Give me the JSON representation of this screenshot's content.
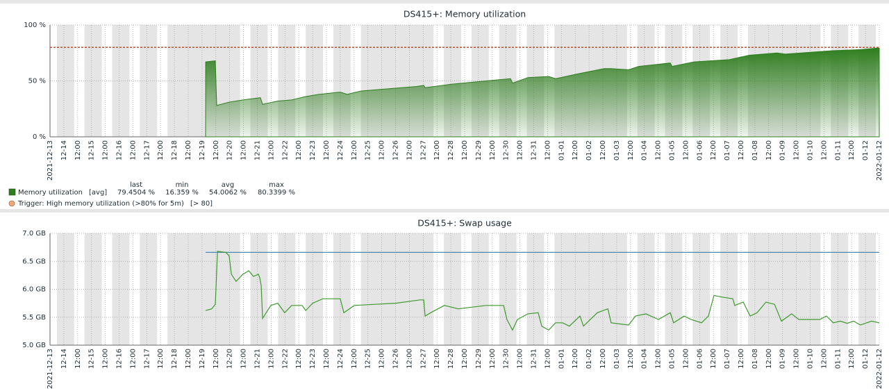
{
  "chart_data": [
    {
      "type": "area",
      "title": "DS415+: Memory utilization",
      "xlim": [
        0,
        30
      ],
      "xticks": [
        {
          "value": 0,
          "label": "2021-12-13"
        },
        {
          "value": 0.5,
          "label": "12-14"
        },
        {
          "value": 1,
          "label": "12:00"
        },
        {
          "value": 1.5,
          "label": "12-15"
        },
        {
          "value": 2,
          "label": "12:00"
        },
        {
          "value": 2.5,
          "label": "12-16"
        },
        {
          "value": 3,
          "label": "12:00"
        },
        {
          "value": 3.5,
          "label": "12-17"
        },
        {
          "value": 4,
          "label": "12:00"
        },
        {
          "value": 4.5,
          "label": "12-18"
        },
        {
          "value": 5,
          "label": "12:00"
        },
        {
          "value": 5.5,
          "label": "12-19"
        },
        {
          "value": 6,
          "label": "12:00"
        },
        {
          "value": 6.5,
          "label": "12-20"
        },
        {
          "value": 7,
          "label": "12:00"
        },
        {
          "value": 7.5,
          "label": "12-21"
        },
        {
          "value": 8,
          "label": "12:00"
        },
        {
          "value": 8.5,
          "label": "12-22"
        },
        {
          "value": 9,
          "label": "12:00"
        },
        {
          "value": 9.5,
          "label": "12-23"
        },
        {
          "value": 10,
          "label": "12:00"
        },
        {
          "value": 10.5,
          "label": "12-24"
        },
        {
          "value": 11,
          "label": "12:00"
        },
        {
          "value": 11.5,
          "label": "12-25"
        },
        {
          "value": 12,
          "label": "12:00"
        },
        {
          "value": 12.5,
          "label": "12-26"
        },
        {
          "value": 13,
          "label": "12:00"
        },
        {
          "value": 13.5,
          "label": "12-27"
        },
        {
          "value": 14,
          "label": "12:00"
        },
        {
          "value": 14.5,
          "label": "12-28"
        },
        {
          "value": 15,
          "label": "12:00"
        },
        {
          "value": 15.5,
          "label": "12-29"
        },
        {
          "value": 16,
          "label": "12:00"
        },
        {
          "value": 16.5,
          "label": "12-30"
        },
        {
          "value": 17,
          "label": "12:00"
        },
        {
          "value": 17.5,
          "label": "12-31"
        },
        {
          "value": 18,
          "label": "12:00"
        },
        {
          "value": 18.5,
          "label": "01-01"
        },
        {
          "value": 19,
          "label": "12:00"
        },
        {
          "value": 19.5,
          "label": "01-02"
        },
        {
          "value": 20,
          "label": "12:00"
        },
        {
          "value": 20.5,
          "label": "01-03"
        },
        {
          "value": 21,
          "label": "12:00"
        },
        {
          "value": 21.5,
          "label": "01-04"
        },
        {
          "value": 22,
          "label": "12:00"
        },
        {
          "value": 22.5,
          "label": "01-05"
        },
        {
          "value": 23,
          "label": "12:00"
        },
        {
          "value": 23.5,
          "label": "01-06"
        },
        {
          "value": 24,
          "label": "12:00"
        },
        {
          "value": 24.5,
          "label": "01-07"
        },
        {
          "value": 25,
          "label": "12:00"
        },
        {
          "value": 25.5,
          "label": "01-08"
        },
        {
          "value": 26,
          "label": "12:00"
        },
        {
          "value": 26.5,
          "label": "01-09"
        },
        {
          "value": 27,
          "label": "12:00"
        },
        {
          "value": 27.5,
          "label": "01-10"
        },
        {
          "value": 28,
          "label": "12:00"
        },
        {
          "value": 28.5,
          "label": "01-11"
        },
        {
          "value": 29,
          "label": "12:00"
        },
        {
          "value": 29.5,
          "label": "01-12"
        },
        {
          "value": 30,
          "label": "2022-01-12"
        }
      ],
      "ylim": [
        0,
        100
      ],
      "yticks": [
        {
          "value": 0,
          "label": "0 %"
        },
        {
          "value": 50,
          "label": "50 %"
        },
        {
          "value": 100,
          "label": "100 %"
        }
      ],
      "grid": true,
      "series": [
        {
          "name": "Memory utilization",
          "function": "[avg]",
          "color": "#2f7d1f",
          "x": [
            5.63,
            5.98,
            6.03,
            6.48,
            6.98,
            7.61,
            7.69,
            8.24,
            8.74,
            9.25,
            9.75,
            10.5,
            10.75,
            11.26,
            12.26,
            13.27,
            13.52,
            13.57,
            14.52,
            15.78,
            16.66,
            16.73,
            17.29,
            18.04,
            18.3,
            19.05,
            20.05,
            20.3,
            20.93,
            21.3,
            22.44,
            22.5,
            23.3,
            24.57,
            25.3,
            26.3,
            26.6,
            28.3,
            29.35,
            30
          ],
          "values": [
            67,
            68,
            28,
            31,
            33,
            35,
            29,
            32,
            33,
            36,
            38,
            40,
            38,
            41,
            43,
            45,
            46,
            44,
            47,
            50,
            52,
            48,
            53,
            54,
            52,
            56,
            61,
            61,
            60,
            63,
            66,
            63,
            67,
            69,
            73,
            75,
            74,
            77,
            78,
            79.5
          ]
        }
      ],
      "legend_stats": {
        "names": [
          "last",
          "min",
          "avg",
          "max"
        ],
        "values": [
          79.4504,
          16.359,
          54.0062,
          80.3399
        ],
        "value_labels": [
          "79.4504 %",
          "16.359 %",
          "54.0062 %",
          "80.3399 %"
        ]
      },
      "trigger": {
        "name": "Trigger: High memory utilization (>80% for 5m)",
        "value": 80,
        "label": "[> 80]",
        "color": "#b5451b"
      }
    },
    {
      "type": "line",
      "title": "DS415+: Swap usage",
      "xlim": [
        0,
        30
      ],
      "xticks": [
        {
          "value": 0,
          "label": "2021-12-13"
        },
        {
          "value": 0.5,
          "label": "12-14"
        },
        {
          "value": 1,
          "label": "12:00"
        },
        {
          "value": 1.5,
          "label": "12-15"
        },
        {
          "value": 2,
          "label": "12:00"
        },
        {
          "value": 2.5,
          "label": "12-16"
        },
        {
          "value": 3,
          "label": "12:00"
        },
        {
          "value": 3.5,
          "label": "12-17"
        },
        {
          "value": 4,
          "label": "12:00"
        },
        {
          "value": 4.5,
          "label": "12-18"
        },
        {
          "value": 5,
          "label": "12:00"
        },
        {
          "value": 5.5,
          "label": "12-19"
        },
        {
          "value": 6,
          "label": "12:00"
        },
        {
          "value": 6.5,
          "label": "12-20"
        },
        {
          "value": 7,
          "label": "12:00"
        },
        {
          "value": 7.5,
          "label": "12-21"
        },
        {
          "value": 8,
          "label": "12:00"
        },
        {
          "value": 8.5,
          "label": "12-22"
        },
        {
          "value": 9,
          "label": "12:00"
        },
        {
          "value": 9.5,
          "label": "12-23"
        },
        {
          "value": 10,
          "label": "12:00"
        },
        {
          "value": 10.5,
          "label": "12-24"
        },
        {
          "value": 11,
          "label": "12:00"
        },
        {
          "value": 11.5,
          "label": "12-25"
        },
        {
          "value": 12,
          "label": "12:00"
        },
        {
          "value": 12.5,
          "label": "12-26"
        },
        {
          "value": 13,
          "label": "12:00"
        },
        {
          "value": 13.5,
          "label": "12-27"
        },
        {
          "value": 14,
          "label": "12:00"
        },
        {
          "value": 14.5,
          "label": "12-28"
        },
        {
          "value": 15,
          "label": "12:00"
        },
        {
          "value": 15.5,
          "label": "12-29"
        },
        {
          "value": 16,
          "label": "12:00"
        },
        {
          "value": 16.5,
          "label": "12-30"
        },
        {
          "value": 17,
          "label": "12:00"
        },
        {
          "value": 17.5,
          "label": "12-31"
        },
        {
          "value": 18,
          "label": "12:00"
        },
        {
          "value": 18.5,
          "label": "01-01"
        },
        {
          "value": 19,
          "label": "12:00"
        },
        {
          "value": 19.5,
          "label": "01-02"
        },
        {
          "value": 20,
          "label": "12:00"
        },
        {
          "value": 20.5,
          "label": "01-03"
        },
        {
          "value": 21,
          "label": "12:00"
        },
        {
          "value": 21.5,
          "label": "01-04"
        },
        {
          "value": 22,
          "label": "12:00"
        },
        {
          "value": 22.5,
          "label": "01-05"
        },
        {
          "value": 23,
          "label": "12:00"
        },
        {
          "value": 23.5,
          "label": "01-06"
        },
        {
          "value": 24,
          "label": "12:00"
        },
        {
          "value": 24.5,
          "label": "01-07"
        },
        {
          "value": 25,
          "label": "12:00"
        },
        {
          "value": 25.5,
          "label": "01-08"
        },
        {
          "value": 26,
          "label": "12:00"
        },
        {
          "value": 26.5,
          "label": "01-09"
        },
        {
          "value": 27,
          "label": "12:00"
        },
        {
          "value": 27.5,
          "label": "01-10"
        },
        {
          "value": 28,
          "label": "12:00"
        },
        {
          "value": 28.5,
          "label": "01-11"
        },
        {
          "value": 29,
          "label": "12:00"
        },
        {
          "value": 29.5,
          "label": "01-12"
        },
        {
          "value": 30,
          "label": "2022-01-12"
        }
      ],
      "ylim": [
        5,
        7
      ],
      "yticks": [
        {
          "value": 5,
          "label": "5.0 GB"
        },
        {
          "value": 5.5,
          "label": "5.5 GB"
        },
        {
          "value": 6,
          "label": "6.0 GB"
        },
        {
          "value": 6.5,
          "label": "6.5 GB"
        },
        {
          "value": 7,
          "label": "7.0 GB"
        }
      ],
      "grid": true,
      "series": [
        {
          "color": "#4f86ad",
          "x": [
            5.63,
            30
          ],
          "values": [
            6.66,
            6.66
          ]
        },
        {
          "color": "#3d9a2c",
          "x": [
            5.63,
            5.85,
            5.98,
            6.06,
            6.36,
            6.48,
            6.56,
            6.73,
            6.98,
            7.19,
            7.36,
            7.54,
            7.59,
            7.64,
            7.69,
            7.99,
            8.24,
            8.49,
            8.74,
            9.12,
            9.25,
            9.5,
            9.87,
            10.5,
            10.63,
            11.01,
            11.76,
            12.51,
            13.39,
            13.52,
            13.57,
            13.77,
            14.27,
            14.77,
            15.78,
            16.41,
            16.53,
            16.73,
            16.91,
            17.29,
            17.66,
            17.79,
            18.04,
            18.29,
            18.54,
            18.79,
            19.17,
            19.3,
            19.8,
            20.18,
            20.3,
            20.93,
            21.18,
            21.56,
            22.01,
            22.44,
            22.56,
            22.94,
            23.19,
            23.57,
            23.82,
            24.02,
            24.32,
            24.7,
            24.77,
            25.08,
            25.33,
            25.58,
            25.9,
            26.21,
            26.46,
            26.83,
            27.09,
            27.84,
            28.09,
            28.34,
            28.59,
            28.84,
            29.07,
            29.32,
            29.72,
            30
          ],
          "values": [
            5.62,
            5.65,
            5.73,
            6.68,
            6.66,
            6.6,
            6.27,
            6.14,
            6.27,
            6.33,
            6.23,
            6.27,
            6.2,
            6.06,
            5.48,
            5.71,
            5.75,
            5.58,
            5.71,
            5.71,
            5.62,
            5.75,
            5.83,
            5.83,
            5.58,
            5.71,
            5.73,
            5.75,
            5.81,
            5.81,
            5.52,
            5.58,
            5.71,
            5.65,
            5.71,
            5.71,
            5.46,
            5.27,
            5.46,
            5.56,
            5.58,
            5.34,
            5.27,
            5.4,
            5.4,
            5.34,
            5.52,
            5.34,
            5.58,
            5.65,
            5.4,
            5.36,
            5.52,
            5.56,
            5.46,
            5.58,
            5.4,
            5.52,
            5.46,
            5.4,
            5.52,
            5.89,
            5.86,
            5.83,
            5.71,
            5.77,
            5.52,
            5.58,
            5.77,
            5.73,
            5.43,
            5.56,
            5.46,
            5.46,
            5.52,
            5.4,
            5.43,
            5.39,
            5.43,
            5.36,
            5.43,
            5.4
          ]
        }
      ]
    }
  ]
}
